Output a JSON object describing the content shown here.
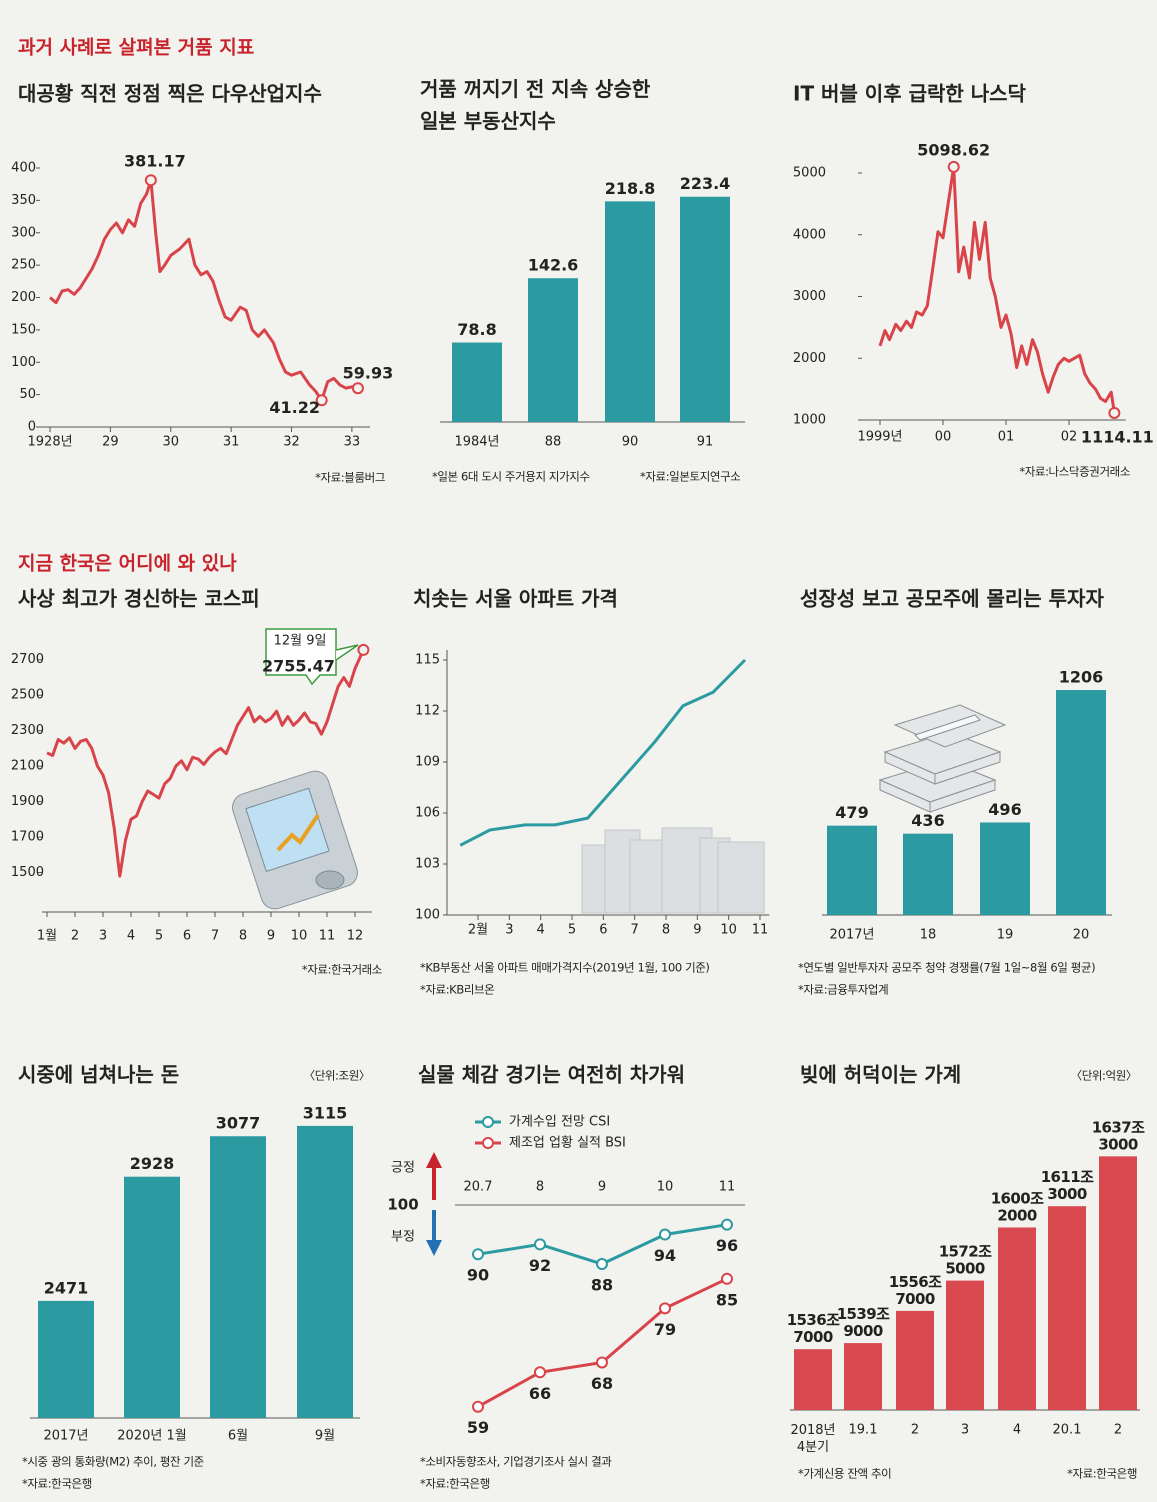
{
  "sections": [
    "과거 사례로 살펴본 거품 지표",
    "지금 한국은 어디에 와 있나"
  ],
  "chart_data": [
    {
      "type": "line",
      "title": "대공황 직전 정점 찍은 다우산업지수",
      "color": "#d9434a",
      "x": [
        1928.0,
        1928.1,
        1928.2,
        1928.3,
        1928.4,
        1928.5,
        1928.6,
        1928.7,
        1928.8,
        1928.9,
        1929.0,
        1929.1,
        1929.2,
        1929.3,
        1929.4,
        1929.5,
        1929.6,
        1929.67,
        1929.75,
        1929.82,
        1929.9,
        1930.0,
        1930.15,
        1930.3,
        1930.4,
        1930.5,
        1930.6,
        1930.7,
        1930.8,
        1930.9,
        1931.0,
        1931.15,
        1931.25,
        1931.35,
        1931.45,
        1931.55,
        1931.7,
        1931.8,
        1931.9,
        1932.0,
        1932.15,
        1932.3,
        1932.4,
        1932.5,
        1932.6,
        1932.7,
        1932.8,
        1932.9,
        1933.0,
        1933.1
      ],
      "values": [
        200,
        192,
        210,
        212,
        205,
        215,
        230,
        245,
        265,
        290,
        305,
        315,
        300,
        320,
        310,
        345,
        360,
        381.17,
        300,
        240,
        250,
        265,
        275,
        290,
        250,
        235,
        240,
        225,
        195,
        170,
        165,
        185,
        180,
        150,
        140,
        150,
        130,
        105,
        85,
        80,
        85,
        65,
        55,
        41.22,
        70,
        75,
        65,
        60,
        62,
        59.93
      ],
      "highlights": [
        17,
        43,
        49
      ],
      "xlim": [
        1927.9,
        1933.3
      ],
      "xticks": [
        {
          "value": 1928,
          "label": "1928년"
        },
        {
          "value": 1929,
          "label": "29"
        },
        {
          "value": 1930,
          "label": "30"
        },
        {
          "value": 1931,
          "label": "31"
        },
        {
          "value": 1932,
          "label": "32"
        },
        {
          "value": 1933,
          "label": "33"
        }
      ],
      "ylim": [
        0,
        400
      ],
      "yticks": [
        0,
        50,
        100,
        150,
        200,
        250,
        300,
        350,
        400
      ],
      "notes": [
        "*자료:블룸버그"
      ]
    },
    {
      "type": "bar",
      "title": [
        "거품 꺼지기 전 지속 상승한",
        "일본 부동산지수"
      ],
      "color": "#2b9aa1",
      "categories": [
        "1984년",
        "88",
        "90",
        "91"
      ],
      "values": [
        78.8,
        142.6,
        218.8,
        223.4
      ],
      "ylim": [
        0,
        240
      ],
      "notes": [
        "*일본 6대 도시 주거용지 지가지수",
        "*자료:일본토지연구소"
      ]
    },
    {
      "type": "line",
      "title": "IT 버블 이후 급락한 나스닥",
      "color": "#d9434a",
      "x": [
        1999.0,
        1999.08,
        1999.15,
        1999.25,
        1999.33,
        1999.42,
        1999.5,
        1999.58,
        1999.67,
        1999.75,
        1999.83,
        1999.92,
        2000.0,
        2000.17,
        2000.25,
        2000.33,
        2000.42,
        2000.5,
        2000.58,
        2000.67,
        2000.75,
        2000.83,
        2000.92,
        2001.0,
        2001.08,
        2001.17,
        2001.25,
        2001.33,
        2001.42,
        2001.5,
        2001.58,
        2001.67,
        2001.75,
        2001.83,
        2001.92,
        2002.0,
        2002.17,
        2002.25,
        2002.33,
        2002.42,
        2002.5,
        2002.58,
        2002.67,
        2002.72
      ],
      "values": [
        2200,
        2450,
        2300,
        2550,
        2450,
        2600,
        2500,
        2750,
        2700,
        2850,
        3400,
        4050,
        3950,
        5098.62,
        3400,
        3800,
        3300,
        4200,
        3600,
        4200,
        3300,
        3000,
        2500,
        2700,
        2400,
        1850,
        2200,
        1900,
        2300,
        2100,
        1750,
        1450,
        1700,
        1900,
        2000,
        1950,
        2050,
        1750,
        1600,
        1500,
        1350,
        1300,
        1450,
        1114.11
      ],
      "highlights": [
        13,
        43
      ],
      "xlim": [
        1998.8,
        2002.9
      ],
      "xticks": [
        {
          "value": 1999,
          "label": "1999년"
        },
        {
          "value": 2000,
          "label": "00"
        },
        {
          "value": 2001,
          "label": "01"
        },
        {
          "value": 2002,
          "label": "02"
        }
      ],
      "ylim": [
        1000,
        5000
      ],
      "yticks": [
        1000,
        2000,
        3000,
        4000,
        5000
      ],
      "notes": [
        "*자료:나스닥증권거래소"
      ]
    },
    {
      "type": "line",
      "title": "사상 최고가 경신하는 코스피",
      "color": "#d9434a",
      "x": [
        1,
        1.2,
        1.4,
        1.6,
        1.8,
        2,
        2.2,
        2.4,
        2.6,
        2.8,
        3,
        3.2,
        3.4,
        3.6,
        3.8,
        4,
        4.2,
        4.4,
        4.6,
        4.8,
        5,
        5.2,
        5.4,
        5.6,
        5.8,
        6,
        6.2,
        6.4,
        6.6,
        6.8,
        7,
        7.2,
        7.4,
        7.6,
        7.8,
        8,
        8.2,
        8.4,
        8.6,
        8.8,
        9,
        9.2,
        9.4,
        9.6,
        9.8,
        10,
        10.2,
        10.4,
        10.6,
        10.8,
        11,
        11.2,
        11.4,
        11.6,
        11.8,
        12,
        12.3
      ],
      "values": [
        2175,
        2160,
        2250,
        2230,
        2260,
        2200,
        2240,
        2250,
        2200,
        2100,
        2050,
        1950,
        1750,
        1480,
        1680,
        1800,
        1820,
        1900,
        1960,
        1940,
        1920,
        2000,
        2030,
        2100,
        2130,
        2080,
        2150,
        2140,
        2110,
        2150,
        2180,
        2200,
        2170,
        2250,
        2330,
        2380,
        2430,
        2350,
        2380,
        2350,
        2370,
        2410,
        2330,
        2380,
        2330,
        2360,
        2400,
        2350,
        2340,
        2280,
        2350,
        2450,
        2550,
        2600,
        2550,
        2650,
        2755.47
      ],
      "highlights": [
        56
      ],
      "annotations": [
        "12월 9일"
      ],
      "xlim": [
        0.8,
        12.6
      ],
      "xticks": [
        {
          "value": 1,
          "label": "1월"
        },
        2,
        3,
        4,
        5,
        6,
        7,
        8,
        9,
        10,
        11,
        12
      ],
      "ylim": [
        1300,
        2800
      ],
      "yticks": [
        1500,
        1700,
        1900,
        2100,
        2300,
        2500,
        2700
      ],
      "notes": [
        "*자료:한국거래소"
      ]
    },
    {
      "type": "line",
      "title": "치솟는 서울 아파트 가격",
      "color": "#2b9aa1",
      "x": [
        1.43,
        2.38,
        3.5,
        4.46,
        5.5,
        6.6,
        7.65,
        8.54,
        9.5,
        10.52
      ],
      "values": [
        104.1,
        105,
        105.3,
        105.3,
        105.7,
        108,
        110.2,
        112.3,
        113.1,
        115
      ],
      "xlim": [
        1,
        11.3
      ],
      "xticks": [
        {
          "value": 2,
          "label": "2월"
        },
        3,
        4,
        5,
        6,
        7,
        8,
        9,
        10,
        11
      ],
      "ylim": [
        100,
        115
      ],
      "yticks": [
        100,
        103,
        106,
        109,
        112,
        115
      ],
      "notes": [
        "*KB부동산 서울 아파트 매매가격지수(2019년 1월, 100 기준)",
        "*자료:KB리브온"
      ]
    },
    {
      "type": "bar",
      "title": "성장성 보고 공모주에 몰리는 투자자",
      "color": "#2b9aa1",
      "categories": [
        "2017년",
        "18",
        "19",
        "20"
      ],
      "values": [
        479,
        436,
        496,
        1206
      ],
      "ylim": [
        0,
        1300
      ],
      "notes": [
        "*연도별 일반투자자 공모주 청약 경쟁률(7월 1일~8월 6일 평균)",
        "*자료:금융투자업계"
      ]
    },
    {
      "type": "bar",
      "title": "시중에 넘쳐나는 돈",
      "unit": "〈단위:조원〉",
      "color": "#2b9aa1",
      "categories": [
        "2017년",
        "2020년 1월",
        "6월",
        "9월"
      ],
      "values": [
        2471,
        2928,
        3077,
        3115
      ],
      "ylim": [
        2040,
        3200
      ],
      "notes": [
        "*시중 광의 통화량(M2) 추이, 평잔 기준",
        "*자료:한국은행"
      ]
    },
    {
      "type": "line",
      "title": "실물 체감 경기는 여전히 차가워",
      "categories": [
        "20.7",
        "8",
        "9",
        "10",
        "11"
      ],
      "series": [
        {
          "name": "가계수입 전망 CSI",
          "color": "#2b9aa1",
          "values": [
            90,
            92,
            88,
            94,
            96
          ]
        },
        {
          "name": "제조업 업황 실적 BSI",
          "color": "#d9434a",
          "values": [
            59,
            66,
            68,
            79,
            85
          ]
        }
      ],
      "ylim": [
        56,
        100
      ],
      "yticks": [
        100
      ],
      "annotations": [
        "긍정",
        "부정"
      ],
      "notes": [
        "*소비자동향조사, 기업경기조사 실시 결과",
        "*자료:한국은행"
      ]
    },
    {
      "type": "bar",
      "title": "빚에 허덕이는 가계",
      "unit": "〈단위:억원〉",
      "color": "#d94950",
      "categories": [
        [
          "2018년",
          "4분기"
        ],
        "19.1",
        "2",
        "3",
        "4",
        "20.1",
        "2"
      ],
      "values": [
        15367000,
        15399000,
        15567000,
        15725000,
        16002000,
        16113000,
        16373000
      ],
      "value_labels": [
        [
          "1536조",
          "7000"
        ],
        [
          "1539조",
          "9000"
        ],
        [
          "1556조",
          "7000"
        ],
        [
          "1572조",
          "5000"
        ],
        [
          "1600조",
          "2000"
        ],
        [
          "1611조",
          "3000"
        ],
        [
          "1637조",
          "3000"
        ]
      ],
      "ylim": [
        15050000,
        16500000
      ],
      "notes": [
        "*가계신용 잔액 추이",
        "*자료:한국은행"
      ]
    }
  ]
}
